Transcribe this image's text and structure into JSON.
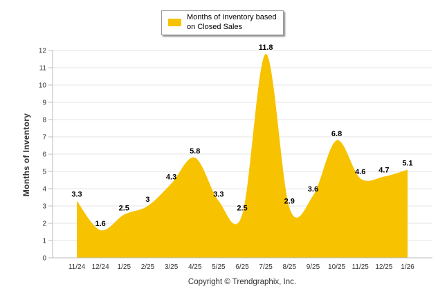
{
  "chart_data": {
    "type": "area",
    "title": "",
    "xlabel": "",
    "ylabel": "Months of Inventory",
    "ylim": [
      0,
      12
    ],
    "yticks": [
      0,
      1,
      2,
      3,
      4,
      5,
      6,
      7,
      8,
      9,
      10,
      11,
      12
    ],
    "categories": [
      "11/24",
      "12/24",
      "1/25",
      "2/25",
      "3/25",
      "4/25",
      "5/25",
      "6/25",
      "7/25",
      "8/25",
      "9/25",
      "10/25",
      "11/25",
      "12/25",
      "1/26"
    ],
    "series": [
      {
        "name": "Months of Inventory based on Closed Sales",
        "values": [
          3.3,
          1.6,
          2.5,
          3,
          4.3,
          5.8,
          3.3,
          2.5,
          11.8,
          2.9,
          3.6,
          6.8,
          4.6,
          4.7,
          5.1
        ],
        "labels": [
          "3.3",
          "1.6",
          "2.5",
          "3",
          "4.3",
          "5.8",
          "3.3",
          "2.5",
          "11.8",
          "2.9",
          "3.6",
          "6.8",
          "4.6",
          "4.7",
          "5.1"
        ],
        "color": "#f7c200"
      }
    ],
    "legend": {
      "position": "top-center",
      "lines": [
        "Months of Inventory based",
        "on Closed Sales"
      ]
    },
    "grid": true
  },
  "footer": {
    "copyright": "Copyright © Trendgraphix, Inc."
  },
  "colors": {
    "area": "#f7c200",
    "grid": "#e6e6e6",
    "axis": "#bbbbbb"
  }
}
